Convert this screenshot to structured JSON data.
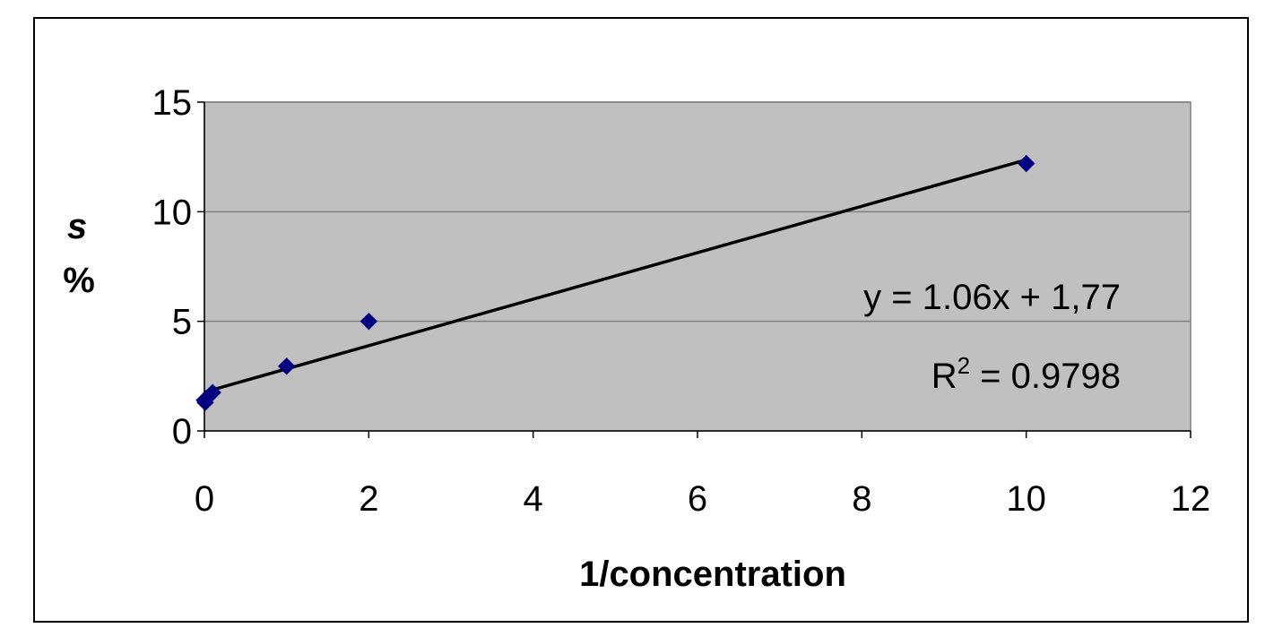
{
  "chart_data": {
    "type": "scatter",
    "x": [
      0,
      0.01,
      0.1,
      1,
      2,
      10
    ],
    "y": [
      1.4,
      1.3,
      1.75,
      2.95,
      5.0,
      12.2
    ],
    "xlabel": "1/concentration",
    "ylabel_top": "s",
    "ylabel_bottom": "%",
    "xlim": [
      0,
      12
    ],
    "ylim": [
      0,
      15
    ],
    "xticks": [
      "0",
      "2",
      "4",
      "6",
      "8",
      "10",
      "12"
    ],
    "yticks": [
      "0",
      "5",
      "10",
      "15"
    ],
    "grid": "horizontal",
    "plot_background": "#c0c0c0",
    "marker_color": "#000080",
    "trendline": {
      "type": "linear",
      "slope": 1.06,
      "intercept": 1.77,
      "x_range": [
        0,
        10
      ],
      "equation": "y = 1.06x + 1,77",
      "r2_prefix": "R",
      "r2_sup": "2",
      "r2_rest": " = 0.9798",
      "color": "#000000"
    }
  }
}
